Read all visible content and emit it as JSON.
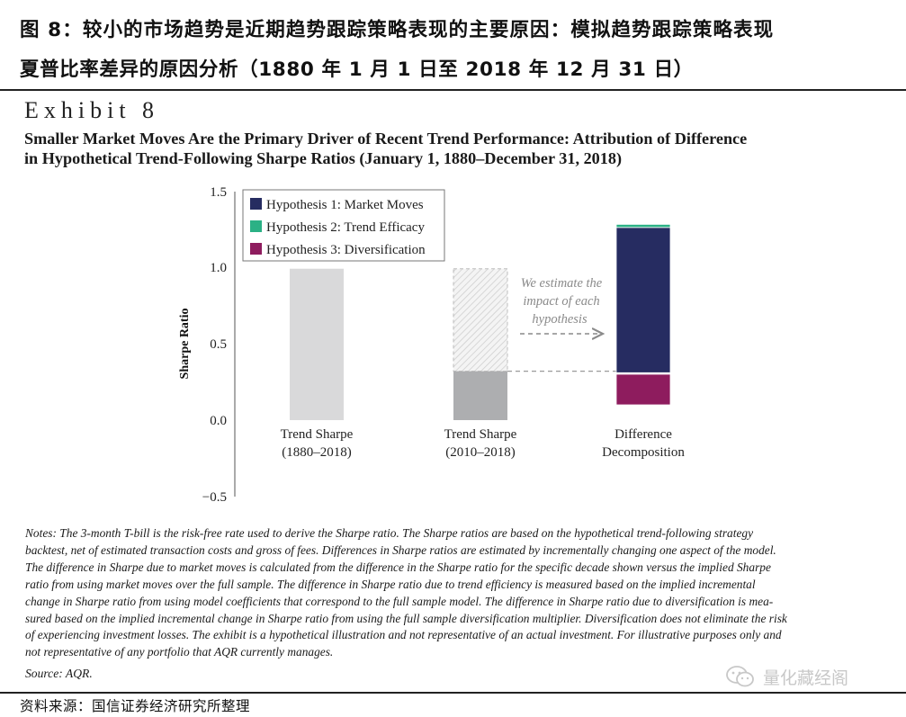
{
  "header_cn": {
    "line1": "图 8：较小的市场趋势是近期趋势跟踪策略表现的主要原因：模拟趋势跟踪策略表现",
    "line2": "夏普比率差异的原因分析（1880 年 1 月 1 日至 2018 年 12 月 31 日）"
  },
  "exhibit": {
    "label": "Exhibit 8",
    "title_line1": "Smaller Market Moves Are the Primary Driver of Recent Trend Performance: Attribution of Difference",
    "title_line2": "in Hypothetical Trend-Following Sharpe Ratios (January 1, 1880–December 31, 2018)"
  },
  "chart_data": {
    "type": "bar",
    "ylabel": "Sharpe Ratio",
    "ylim": [
      -0.5,
      1.5
    ],
    "yticks": [
      "1.5",
      "1.0",
      "0.5",
      "0.0",
      "−0.5"
    ],
    "ytick_values": [
      1.5,
      1.0,
      0.5,
      0.0,
      -0.5
    ],
    "categories": [
      {
        "line1": "Trend Sharpe",
        "line2": "(1880–2018)"
      },
      {
        "line1": "Trend Sharpe",
        "line2": "(2010–2018)"
      },
      {
        "line1": "Difference",
        "line2": "Decomposition"
      }
    ],
    "bars": {
      "trend_1880_2018": 0.99,
      "trend_2010_2018": 0.32,
      "trend_2010_2018_dashed_outline_top": 0.99
    },
    "decomposition_series": [
      {
        "name": "Hypothesis 1: Market Moves",
        "start": 0.31,
        "end": 1.26,
        "color": "#262c61"
      },
      {
        "name": "Hypothesis 2: Trend Efficacy",
        "start": 1.26,
        "end": 1.28,
        "color": "#2bb185"
      },
      {
        "name": "Hypothesis 3: Diversification",
        "start": 0.1,
        "end": 0.3,
        "color": "#8e1c5e"
      }
    ],
    "annotation": {
      "line1": "We estimate the",
      "line2": "impact of each",
      "line3": "hypothesis"
    },
    "legend_position": "top-left",
    "colors": {
      "bar_full_sample": "#d9d9da",
      "bar_recent": "#adaeb0",
      "annotation": "#8a8a8a"
    }
  },
  "notes": [
    "Notes: The 3-month T-bill is the risk-free rate used to derive the Sharpe ratio. The Sharpe ratios are based on the hypothetical trend-following strategy",
    "backtest, net of estimated transaction costs and gross of fees. Differences in Sharpe ratios are estimated by incrementally changing one aspect of the model.",
    "The difference in Sharpe due to market moves is calculated from the difference in the Sharpe ratio for the specific decade shown versus the implied Sharpe",
    "ratio from using market moves over the full sample. The difference in Sharpe ratio due to trend efficiency is measured based on the implied incremental",
    "change in Sharpe ratio from using model coefficients that correspond to the full sample model. The difference in Sharpe ratio due to diversification is mea-",
    "sured based on the implied incremental change in Sharpe ratio from using the full sample diversification multiplier. Diversification does not eliminate the risk",
    "of experiencing investment losses. The exhibit is a hypothetical illustration and not representative of an actual investment. For illustrative purposes only and",
    "not representative of any portfolio that AQR currently manages."
  ],
  "source": "Source: AQR.",
  "watermark": {
    "text": "量化藏经阁",
    "icon": "wechat-icon"
  },
  "footer": "资料来源：国信证券经济研究所整理"
}
